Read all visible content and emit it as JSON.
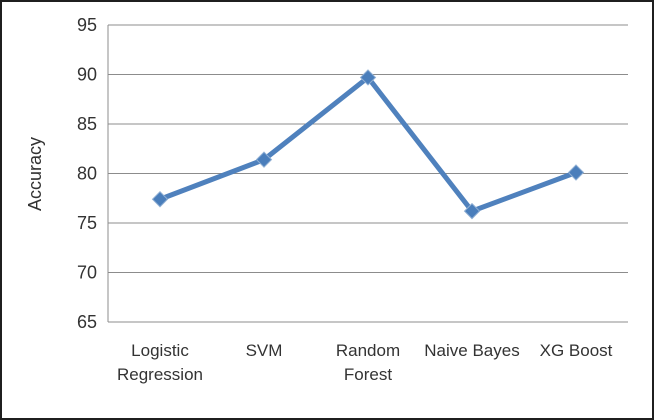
{
  "chart_data": {
    "type": "line",
    "title": "",
    "categories": [
      "Logistic Regression",
      "SVM",
      "Random Forest",
      "Naive Bayes",
      "XG Boost"
    ],
    "values": [
      77.4,
      81.4,
      89.7,
      76.2,
      80.1
    ],
    "series_name": "Accuracy",
    "xlabel": "",
    "ylabel": "Accuracy",
    "ylim": [
      65,
      95
    ],
    "yticks": [
      65,
      70,
      75,
      80,
      85,
      90,
      95
    ],
    "grid": true,
    "legend_position": "none",
    "marker": "diamond",
    "line_color": "#4f81bd",
    "marker_color": "#4a7ebb",
    "marker_highlight": "#8fafd4",
    "gridline_color": "#8c8c8c",
    "axis_line_color": "#8c8c8c",
    "text_color": "#333333",
    "frame_border_color": "#1f1f1f",
    "background_color": "#ffffff"
  }
}
